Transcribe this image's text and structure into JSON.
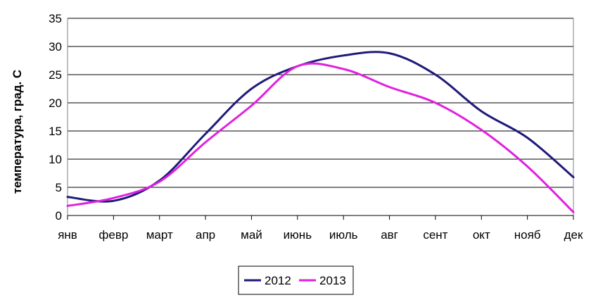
{
  "chart_data": {
    "type": "line",
    "title": "",
    "xlabel": "",
    "ylabel": "температура, град. С",
    "categories": [
      "янв",
      "февр",
      "март",
      "апр",
      "май",
      "июнь",
      "июль",
      "авг",
      "сент",
      "окт",
      "нояб",
      "дек"
    ],
    "y_ticks": [
      "0",
      "5",
      "10",
      "15",
      "20",
      "25",
      "30",
      "35"
    ],
    "ylim": [
      0,
      35
    ],
    "grid": true,
    "legend_position": "bottom",
    "series": [
      {
        "name": "2012",
        "color": "#1f1a7a",
        "values": [
          3.3,
          2.6,
          6.2,
          14.5,
          22.5,
          26.5,
          28.4,
          28.8,
          25.0,
          18.5,
          13.8,
          6.8
        ]
      },
      {
        "name": "2013",
        "color": "#e020e0",
        "values": [
          1.7,
          3.1,
          6.0,
          13.0,
          19.5,
          26.5,
          26.0,
          22.8,
          20.0,
          15.2,
          8.7,
          0.6
        ]
      }
    ]
  }
}
